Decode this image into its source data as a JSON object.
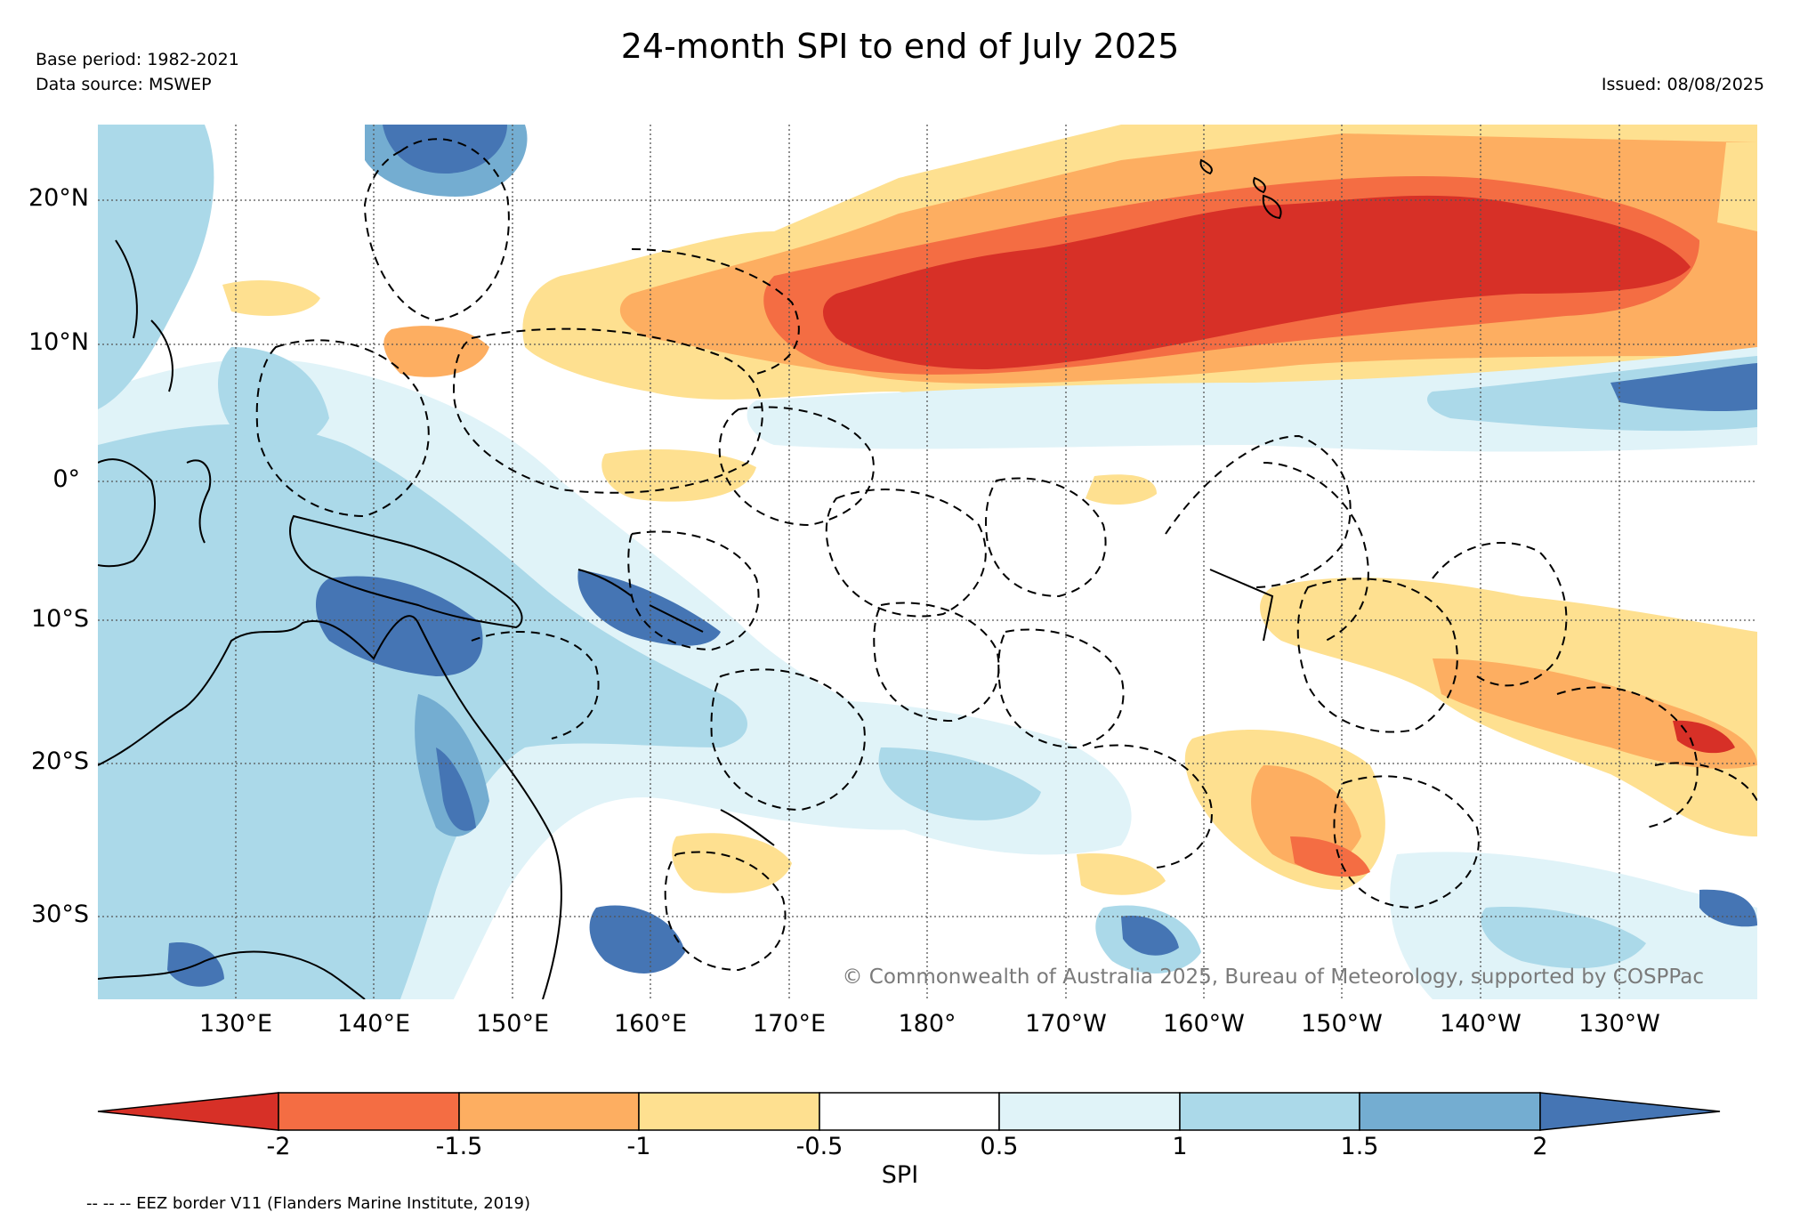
{
  "title": "24-month SPI to end of July 2025",
  "base_period": "Base period: 1982-2021",
  "data_source": "Data source: MSWEP",
  "issued": "Issued: 08/08/2025",
  "map": {
    "lat_labels": [
      "20°N",
      "10°N",
      "0°",
      "10°S",
      "20°S",
      "30°S"
    ],
    "lon_labels": [
      "130°E",
      "140°E",
      "150°E",
      "160°E",
      "170°E",
      "180°",
      "170°W",
      "160°W",
      "150°W",
      "140°W",
      "130°W"
    ],
    "copyright": "© Commonwealth of Australia 2025, Bureau of Meteorology, supported by COSPPac",
    "colors": {
      "very_dry": "#d73027",
      "dry_1_5": "#f46d43",
      "dry_1": "#fdae61",
      "dry_0_5": "#fee090",
      "normal": "#ffffff",
      "wet_0_5": "#e0f3f8",
      "wet_1": "#abd9e9",
      "wet_1_5": "#74add1",
      "very_wet": "#4575b4"
    }
  },
  "colorbar": {
    "ticks": [
      "-2",
      "-1.5",
      "-1",
      "-0.5",
      "0.5",
      "1",
      "1.5",
      "2"
    ],
    "label": "SPI",
    "colors": [
      "#d73027",
      "#f46d43",
      "#fdae61",
      "#fee090",
      "#ffffff",
      "#e0f3f8",
      "#abd9e9",
      "#74add1",
      "#4575b4"
    ]
  },
  "footnote": "-- -- -- EEZ border V11 (Flanders Marine Institute, 2019)"
}
